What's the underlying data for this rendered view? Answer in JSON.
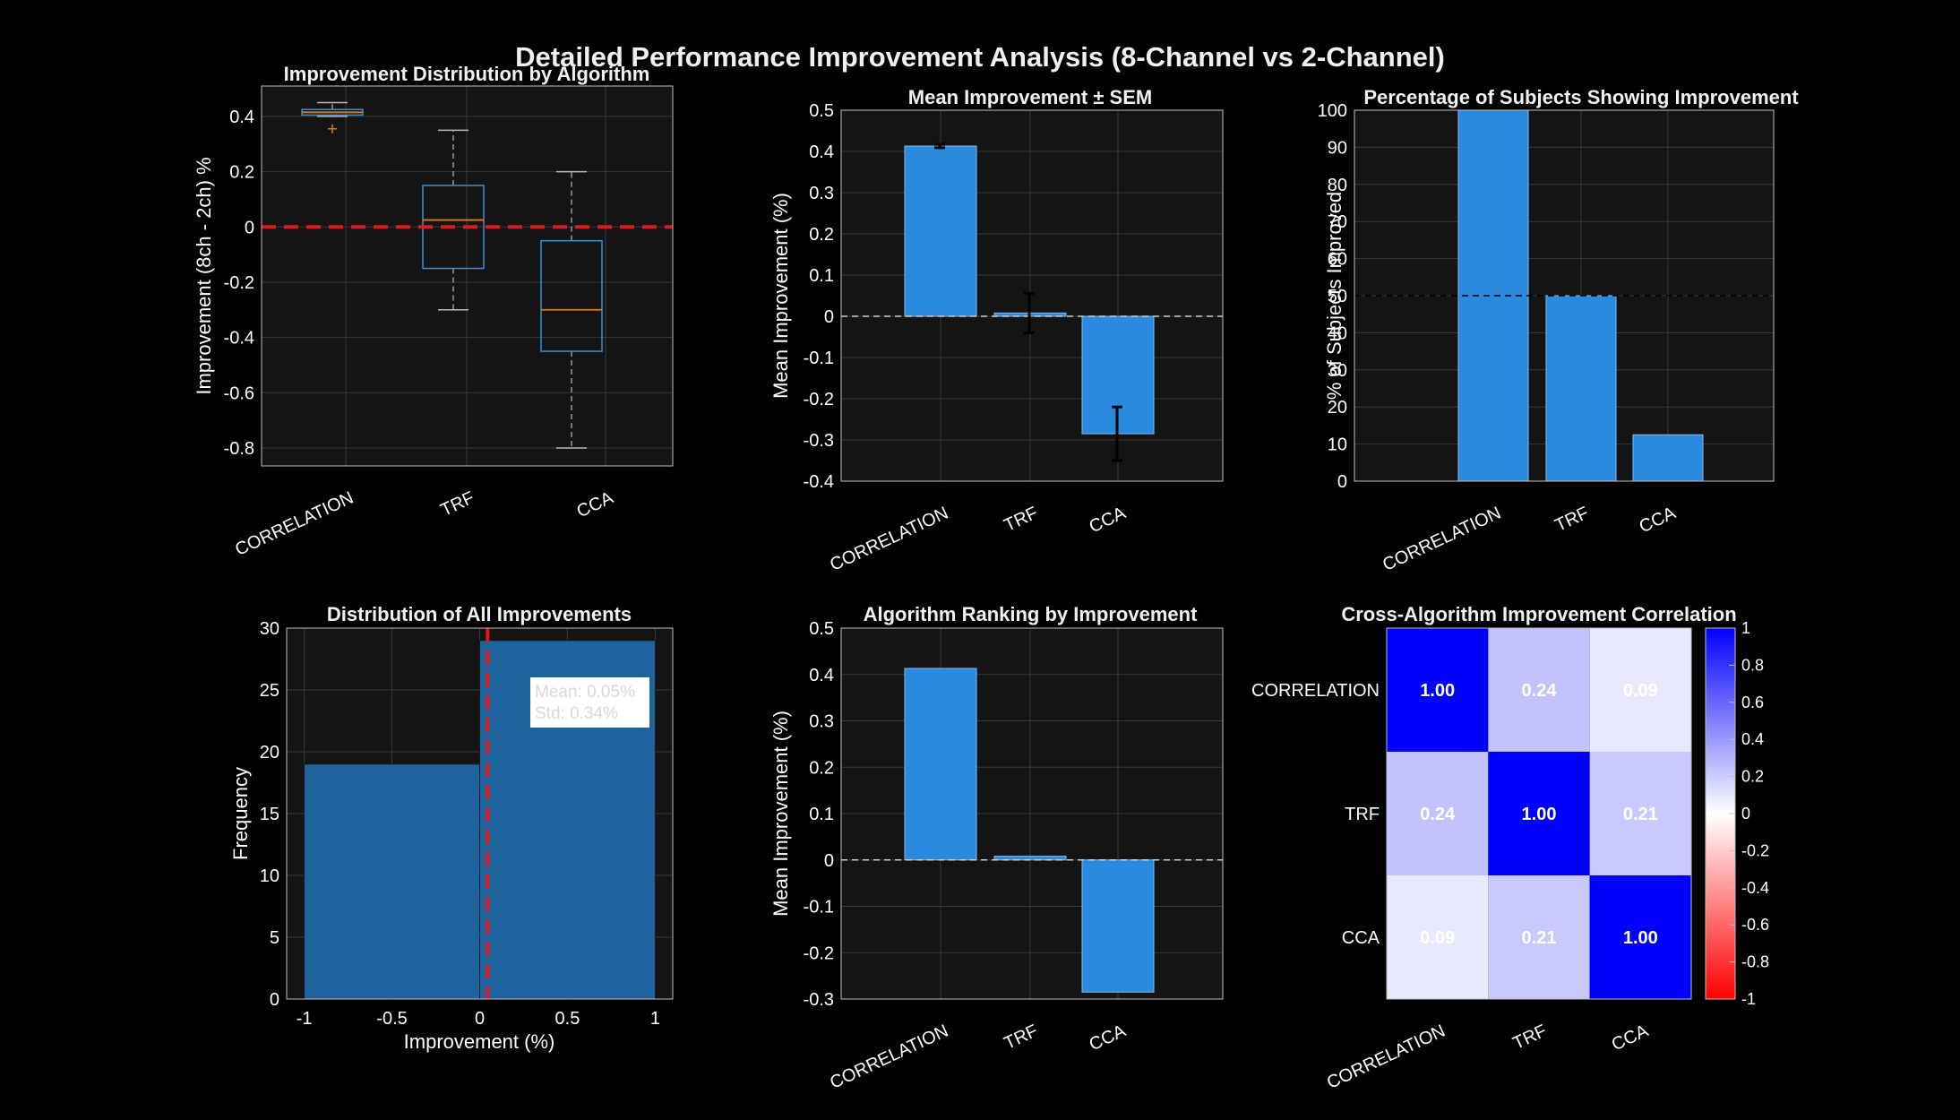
{
  "figure": {
    "title": "Detailed Performance Improvement Analysis (8-Channel vs 2-Channel)",
    "background": "#000000",
    "axes_background": "#141414",
    "bar_color": "#2a8ae0"
  },
  "chart_data": [
    {
      "type": "box",
      "title": "Improvement Distribution by Algorithm",
      "xlabel": "",
      "ylabel": "Improvement (8ch - 2ch) %",
      "categories": [
        "CORRELATION",
        "TRF",
        "CCA"
      ],
      "boxes": [
        {
          "whisker_low": 0.4,
          "q1": 0.405,
          "median": 0.415,
          "q3": 0.425,
          "whisker_high": 0.45,
          "outliers": [
            0.355
          ]
        },
        {
          "whisker_low": -0.3,
          "q1": -0.15,
          "median": 0.025,
          "q3": 0.15,
          "whisker_high": 0.35,
          "outliers": []
        },
        {
          "whisker_low": -0.8,
          "q1": -0.45,
          "median": -0.3,
          "q3": -0.05,
          "whisker_high": 0.2,
          "outliers": []
        }
      ],
      "reference_line": 0,
      "ylim": [
        -0.865,
        0.51
      ],
      "yticks": [
        "0.4",
        "0.2",
        "0",
        "-0.2",
        "-0.4",
        "-0.6",
        "-0.8"
      ],
      "ytick_values": [
        0.4,
        0.2,
        0,
        -0.2,
        -0.4,
        -0.6,
        -0.8
      ],
      "grid": true
    },
    {
      "type": "bar",
      "title": "Mean Improvement ± SEM",
      "xlabel": "",
      "ylabel": "Mean Improvement (%)",
      "categories": [
        "CORRELATION",
        "TRF",
        "CCA"
      ],
      "values": [
        0.413,
        0.008,
        -0.285
      ],
      "errors": [
        0.004,
        0.048,
        0.065
      ],
      "reference_line": 0,
      "ylim": [
        -0.4,
        0.5
      ],
      "yticks": [
        "0.5",
        "0.4",
        "0.3",
        "0.2",
        "0.1",
        "0",
        "-0.1",
        "-0.2",
        "-0.3",
        "-0.4"
      ],
      "ytick_values": [
        0.5,
        0.4,
        0.3,
        0.2,
        0.1,
        0,
        -0.1,
        -0.2,
        -0.3,
        -0.4
      ],
      "grid": true
    },
    {
      "type": "bar",
      "title": "Percentage of Subjects Showing Improvement",
      "xlabel": "",
      "ylabel": "% of Subjects Improved",
      "categories": [
        "CORRELATION",
        "TRF",
        "CCA"
      ],
      "values": [
        100,
        50,
        12.5
      ],
      "reference_line": 50,
      "ylim": [
        0,
        100
      ],
      "yticks": [
        "100",
        "90",
        "80",
        "70",
        "60",
        "50",
        "40",
        "30",
        "20",
        "10",
        "0"
      ],
      "ytick_values": [
        100,
        90,
        80,
        70,
        60,
        50,
        40,
        30,
        20,
        10,
        0
      ],
      "grid": true
    },
    {
      "type": "histogram",
      "title": "Distribution of All Improvements",
      "xlabel": "Improvement (%)",
      "ylabel": "Frequency",
      "bins": [
        {
          "from": -1,
          "to": 0,
          "count": 19
        },
        {
          "from": 0,
          "to": 1,
          "count": 29
        }
      ],
      "mean_line": 0.05,
      "annotation": [
        "Mean: 0.05%",
        "Std: 0.34%"
      ],
      "xlim": [
        -1.1,
        1.1
      ],
      "ylim": [
        0,
        30
      ],
      "xticks": [
        "-1",
        "-0.5",
        "0",
        "0.5",
        "1"
      ],
      "xtick_values": [
        -1,
        -0.5,
        0,
        0.5,
        1
      ],
      "yticks": [
        "30",
        "25",
        "20",
        "15",
        "10",
        "5",
        "0"
      ],
      "ytick_values": [
        30,
        25,
        20,
        15,
        10,
        5,
        0
      ],
      "grid": true
    },
    {
      "type": "bar",
      "title": "Algorithm Ranking by Improvement",
      "xlabel": "",
      "ylabel": "Mean Improvement (%)",
      "categories": [
        "CORRELATION",
        "TRF",
        "CCA"
      ],
      "values": [
        0.413,
        0.008,
        -0.285
      ],
      "reference_line": 0,
      "ylim": [
        -0.3,
        0.5
      ],
      "yticks": [
        "0.5",
        "0.4",
        "0.3",
        "0.2",
        "0.1",
        "0",
        "-0.1",
        "-0.2",
        "-0.3"
      ],
      "ytick_values": [
        0.5,
        0.4,
        0.3,
        0.2,
        0.1,
        0,
        -0.1,
        -0.2,
        -0.3
      ],
      "grid": true
    },
    {
      "type": "heatmap",
      "title": "Cross-Algorithm Improvement Correlation",
      "xlabel": "",
      "ylabel": "",
      "categories": [
        "CORRELATION",
        "TRF",
        "CCA"
      ],
      "matrix": [
        [
          1.0,
          0.24,
          0.09
        ],
        [
          0.24,
          1.0,
          0.21
        ],
        [
          0.09,
          0.21,
          1.0
        ]
      ],
      "cell_labels": [
        [
          "1.00",
          "0.24",
          "0.09"
        ],
        [
          "0.24",
          "1.00",
          "0.21"
        ],
        [
          "0.09",
          "0.21",
          "1.00"
        ]
      ],
      "colormap": {
        "low": "#ff0000",
        "mid": "#ffffff",
        "high": "#0000ff"
      },
      "clim": [
        -1,
        1
      ],
      "colorbar_ticks": [
        "1",
        "0.8",
        "0.6",
        "0.4",
        "0.2",
        "0",
        "-0.2",
        "-0.4",
        "-0.6",
        "-0.8",
        "-1"
      ],
      "colorbar_values": [
        1,
        0.8,
        0.6,
        0.4,
        0.2,
        0,
        -0.2,
        -0.4,
        -0.6,
        -0.8,
        -1
      ]
    }
  ]
}
